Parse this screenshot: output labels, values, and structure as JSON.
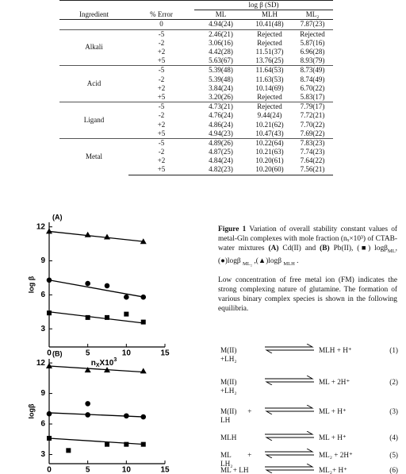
{
  "table": {
    "super_header": "log β (SD)",
    "headers": [
      "Ingredient",
      "% Error",
      "ML",
      "MLH",
      "ML₂"
    ],
    "top_row": [
      "0",
      "4.94(24)",
      "10.41(48)",
      "7.87(23)"
    ],
    "groups": [
      {
        "name": "Alkali",
        "rows": [
          [
            "-5",
            "2.46(21)",
            "Rejected",
            "Rejected"
          ],
          [
            "-2",
            "3.06(16)",
            "Rejected",
            "5.87(16)"
          ],
          [
            "+2",
            "4.42(28)",
            "11.51(37)",
            "6.96(28)"
          ],
          [
            "+5",
            "5.63(67)",
            "13.76(25)",
            "8.93(79)"
          ]
        ]
      },
      {
        "name": "Acid",
        "rows": [
          [
            "-5",
            "5.39(48)",
            "11.64(53)",
            "8.73(49)"
          ],
          [
            "-2",
            "5.39(48)",
            "11.63(53)",
            "8.74(49)"
          ],
          [
            "+2",
            "3.84(24)",
            "10.14(69)",
            "6.70(22)"
          ],
          [
            "+5",
            "3.20(26)",
            "Rejected",
            "5.83(17)"
          ]
        ]
      },
      {
        "name": "Ligand",
        "rows": [
          [
            "-5",
            "4.73(21)",
            "Rejected",
            "7.79(17)"
          ],
          [
            "-2",
            "4.76(24)",
            "9.44(24)",
            "7.72(21)"
          ],
          [
            "+2",
            "4.86(24)",
            "10.21(62)",
            "7.70(22)"
          ],
          [
            "+5",
            "4.94(23)",
            "10.47(43)",
            "7.69(22)"
          ]
        ]
      },
      {
        "name": "Metal",
        "rows": [
          [
            "-5",
            "4.89(26)",
            "10.22(64)",
            "7.83(23)"
          ],
          [
            "-2",
            "4.87(25)",
            "10.21(63)",
            "7.74(23)"
          ],
          [
            "+2",
            "4.84(24)",
            "10.20(61)",
            "7.64(22)"
          ],
          [
            "+5",
            "4.82(23)",
            "10.20(60)",
            "7.56(21)"
          ]
        ]
      }
    ]
  },
  "charts": [
    {
      "type": "scatter",
      "panel": "(A)",
      "y_label": "log β",
      "x_label": [
        "n",
        "X",
        "X10",
        "3"
      ],
      "xlim": [
        0,
        15
      ],
      "xticks": [
        0,
        5,
        10,
        15
      ],
      "ylim": [
        1.4,
        12.4
      ],
      "yticks": [
        3,
        6,
        9,
        12
      ],
      "series": [
        {
          "marker": "square",
          "color": "#000000",
          "x": [
            0,
            5,
            7.5,
            10,
            12.2
          ],
          "values": [
            4.4,
            4.0,
            4.0,
            4.3,
            3.6
          ],
          "fit": {
            "x": [
              0,
              12.3
            ],
            "y": [
              4.5,
              3.5
            ]
          }
        },
        {
          "marker": "circle",
          "color": "#000000",
          "x": [
            0,
            5,
            7.5,
            10,
            12.2
          ],
          "values": [
            7.3,
            7.0,
            6.8,
            5.8,
            5.8
          ],
          "fit": {
            "x": [
              0,
              12.3
            ],
            "y": [
              7.3,
              5.8
            ]
          }
        },
        {
          "marker": "triangle",
          "color": "#000000",
          "x": [
            0,
            5,
            7.5,
            12.2
          ],
          "values": [
            11.6,
            11.3,
            11.1,
            10.7
          ],
          "fit": {
            "x": [
              0,
              12.3
            ],
            "y": [
              11.6,
              10.7
            ]
          }
        }
      ]
    },
    {
      "type": "scatter",
      "panel": "(B)",
      "y_label": "logβ",
      "x_label": [
        "n",
        "X",
        "X10",
        "3"
      ],
      "xlim": [
        0,
        15
      ],
      "xticks": [
        0,
        5,
        10,
        15
      ],
      "ylim": [
        2.1,
        12.4
      ],
      "yticks": [
        3,
        6,
        9,
        12
      ],
      "series": [
        {
          "marker": "square",
          "color": "#000000",
          "x": [
            0,
            2.5,
            7.5,
            10,
            12.2
          ],
          "values": [
            4.6,
            3.4,
            4.0,
            4.0,
            4.0
          ],
          "fit": {
            "x": [
              0,
              12.3
            ],
            "y": [
              4.6,
              4.0
            ]
          }
        },
        {
          "marker": "circle",
          "color": "#000000",
          "x": [
            0,
            5,
            5,
            10,
            12.2
          ],
          "values": [
            7.0,
            8.0,
            6.9,
            6.8,
            6.7
          ],
          "fit": {
            "x": [
              0,
              12.3
            ],
            "y": [
              7.1,
              6.7
            ]
          }
        },
        {
          "marker": "triangle",
          "color": "#000000",
          "x": [
            0,
            5,
            7.5,
            12.2
          ],
          "values": [
            11.7,
            11.3,
            11.3,
            11.2
          ],
          "fit": {
            "x": [
              0,
              12.3
            ],
            "y": [
              11.7,
              11.1
            ]
          }
        }
      ]
    }
  ],
  "caption": [
    {
      "text": "Figure 1",
      "style": "b"
    },
    {
      "text": " Variation of overall stability constant values of metal-Gln complexes with mole fraction (nₓ×10³) of CTAB-water mixtures "
    },
    {
      "text": "(A)",
      "style": "b"
    },
    {
      "text": " Cd(II) and "
    },
    {
      "text": "(B)",
      "style": "b"
    },
    {
      "text": " Pb(II), (■) logβ"
    },
    {
      "text": "ML",
      "style": "sub"
    },
    {
      "text": ", (●)logβ "
    },
    {
      "text": "ML₂",
      "style": "sub"
    },
    {
      "text": " ,(▲)logβ "
    },
    {
      "text": "MLH",
      "style": "sub"
    },
    {
      "text": " ."
    }
  ],
  "paragraph": "Low concentration of free metal ion (FM) indicates the strong complexing nature of glutamine. The formation of various binary complex species is shown in the following equilibria.",
  "equations": [
    {
      "left": [
        "M(II)",
        "+LH₂"
      ],
      "right": "MLH + H⁺",
      "number": "(1)"
    },
    {
      "left": [
        "M(II)",
        "+LH₂"
      ],
      "right": "ML + 2H⁺",
      "number": "(2)"
    },
    {
      "left": [
        "M(II)      +",
        "LH"
      ],
      "right": "ML + H⁺",
      "number": "(3)"
    },
    {
      "left": [
        "MLH"
      ],
      "right": "ML + H⁺",
      "number": "(4)"
    },
    {
      "left": [
        "ML         +",
        "LH₂"
      ],
      "right": "ML₂ + 2H⁺",
      "number": "(5)"
    },
    {
      "left": [
        "ML + LH"
      ],
      "right": "ML₂+ H⁺",
      "number": "(6)"
    }
  ]
}
